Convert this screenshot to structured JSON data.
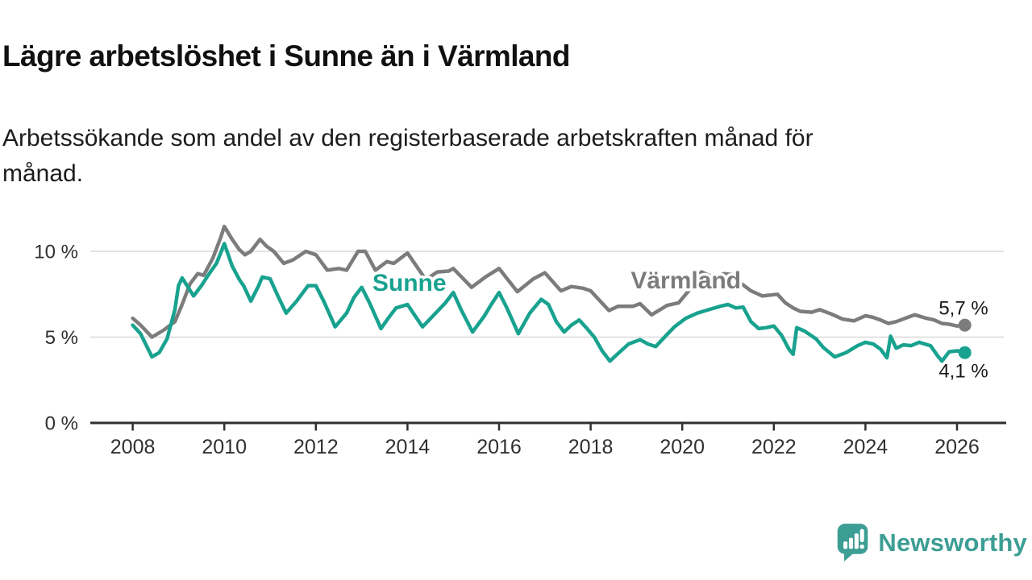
{
  "chart_data": {
    "type": "line",
    "title": "Lägre arbetslöshet i Sunne än i Värmland",
    "subtitle_lines": [
      "Arbetssökande som andel av den registerbaserade arbetskraften månad för",
      "månad."
    ],
    "unit": "%",
    "grid": "horizontal-only",
    "legend_position": "inline-labels-on-lines",
    "x_axis": {
      "min": 2007.1,
      "max": 2027.1,
      "ticks": [
        2008,
        2010,
        2012,
        2014,
        2016,
        2018,
        2020,
        2022,
        2024,
        2026
      ]
    },
    "y_axis": {
      "min": 0,
      "max": 12,
      "gridlines": [
        5,
        10
      ],
      "ticks": [
        {
          "value": 0,
          "label": "0 %"
        },
        {
          "value": 5,
          "label": "5 %"
        },
        {
          "value": 10,
          "label": "10 %"
        }
      ]
    },
    "series": [
      {
        "name": "Värmland",
        "color": "#7C7C7C",
        "end_label": "5,7 %",
        "end_value": 5.7,
        "label_at": {
          "x": 2020.08,
          "y": 7.85
        },
        "end_label_offset": {
          "dx": 29,
          "dy": -13
        },
        "points": [
          [
            2008.0,
            6.1
          ],
          [
            2008.17,
            5.7
          ],
          [
            2008.42,
            5.0
          ],
          [
            2008.67,
            5.4
          ],
          [
            2008.92,
            5.9
          ],
          [
            2009.08,
            6.9
          ],
          [
            2009.25,
            8.1
          ],
          [
            2009.42,
            8.7
          ],
          [
            2009.55,
            8.6
          ],
          [
            2009.75,
            9.6
          ],
          [
            2009.92,
            10.8
          ],
          [
            2010.0,
            11.45
          ],
          [
            2010.17,
            10.7
          ],
          [
            2010.33,
            10.1
          ],
          [
            2010.45,
            9.8
          ],
          [
            2010.58,
            10.0
          ],
          [
            2010.78,
            10.7
          ],
          [
            2010.92,
            10.3
          ],
          [
            2011.08,
            10.0
          ],
          [
            2011.3,
            9.3
          ],
          [
            2011.5,
            9.5
          ],
          [
            2011.78,
            10.0
          ],
          [
            2012.0,
            9.8
          ],
          [
            2012.25,
            8.9
          ],
          [
            2012.5,
            9.0
          ],
          [
            2012.67,
            8.9
          ],
          [
            2012.92,
            10.0
          ],
          [
            2013.08,
            10.0
          ],
          [
            2013.3,
            8.9
          ],
          [
            2013.55,
            9.4
          ],
          [
            2013.7,
            9.3
          ],
          [
            2014.0,
            9.9
          ],
          [
            2014.4,
            8.35
          ],
          [
            2014.65,
            8.8
          ],
          [
            2014.9,
            8.85
          ],
          [
            2015.0,
            9.0
          ],
          [
            2015.4,
            7.9
          ],
          [
            2015.7,
            8.5
          ],
          [
            2016.0,
            9.0
          ],
          [
            2016.4,
            7.65
          ],
          [
            2016.75,
            8.4
          ],
          [
            2017.0,
            8.75
          ],
          [
            2017.35,
            7.7
          ],
          [
            2017.58,
            7.95
          ],
          [
            2017.83,
            7.85
          ],
          [
            2018.0,
            7.7
          ],
          [
            2018.4,
            6.55
          ],
          [
            2018.6,
            6.8
          ],
          [
            2018.92,
            6.8
          ],
          [
            2019.08,
            6.95
          ],
          [
            2019.33,
            6.3
          ],
          [
            2019.67,
            6.85
          ],
          [
            2019.92,
            7.0
          ],
          [
            2020.17,
            7.8
          ],
          [
            2020.42,
            8.8
          ],
          [
            2020.58,
            8.6
          ],
          [
            2020.75,
            8.55
          ],
          [
            2020.92,
            8.7
          ],
          [
            2021.08,
            8.65
          ],
          [
            2021.25,
            8.2
          ],
          [
            2021.5,
            7.7
          ],
          [
            2021.75,
            7.4
          ],
          [
            2021.92,
            7.45
          ],
          [
            2022.08,
            7.5
          ],
          [
            2022.25,
            7.0
          ],
          [
            2022.42,
            6.7
          ],
          [
            2022.58,
            6.5
          ],
          [
            2022.83,
            6.45
          ],
          [
            2023.0,
            6.6
          ],
          [
            2023.25,
            6.35
          ],
          [
            2023.5,
            6.05
          ],
          [
            2023.75,
            5.95
          ],
          [
            2024.0,
            6.25
          ],
          [
            2024.17,
            6.15
          ],
          [
            2024.33,
            6.0
          ],
          [
            2024.5,
            5.8
          ],
          [
            2024.67,
            5.9
          ],
          [
            2024.92,
            6.15
          ],
          [
            2025.08,
            6.3
          ],
          [
            2025.33,
            6.1
          ],
          [
            2025.5,
            6.0
          ],
          [
            2025.67,
            5.8
          ],
          [
            2025.83,
            5.75
          ],
          [
            2026.0,
            5.65
          ],
          [
            2026.17,
            5.7
          ]
        ]
      },
      {
        "name": "Sunne",
        "color": "#18A28F",
        "end_label": "4,1 %",
        "end_value": 4.1,
        "label_at": {
          "x": 2014.04,
          "y": 7.7
        },
        "end_label_offset": {
          "dx": 29,
          "dy": 31
        },
        "points": [
          [
            2008.0,
            5.7
          ],
          [
            2008.17,
            5.2
          ],
          [
            2008.42,
            3.85
          ],
          [
            2008.58,
            4.1
          ],
          [
            2008.75,
            4.9
          ],
          [
            2008.92,
            6.6
          ],
          [
            2009.0,
            8.0
          ],
          [
            2009.08,
            8.45
          ],
          [
            2009.33,
            7.4
          ],
          [
            2009.5,
            8.0
          ],
          [
            2009.67,
            8.7
          ],
          [
            2009.83,
            9.3
          ],
          [
            2009.92,
            9.9
          ],
          [
            2010.0,
            10.45
          ],
          [
            2010.17,
            9.15
          ],
          [
            2010.33,
            8.35
          ],
          [
            2010.42,
            8.0
          ],
          [
            2010.58,
            7.1
          ],
          [
            2010.75,
            8.0
          ],
          [
            2010.83,
            8.5
          ],
          [
            2011.0,
            8.4
          ],
          [
            2011.17,
            7.4
          ],
          [
            2011.35,
            6.4
          ],
          [
            2011.58,
            7.1
          ],
          [
            2011.83,
            8.0
          ],
          [
            2012.0,
            8.0
          ],
          [
            2012.17,
            7.1
          ],
          [
            2012.42,
            5.6
          ],
          [
            2012.67,
            6.4
          ],
          [
            2012.83,
            7.3
          ],
          [
            2013.0,
            7.9
          ],
          [
            2013.17,
            7.0
          ],
          [
            2013.42,
            5.5
          ],
          [
            2013.58,
            6.1
          ],
          [
            2013.75,
            6.7
          ],
          [
            2014.0,
            6.9
          ],
          [
            2014.33,
            5.6
          ],
          [
            2014.58,
            6.3
          ],
          [
            2014.83,
            7.0
          ],
          [
            2015.0,
            7.6
          ],
          [
            2015.17,
            6.6
          ],
          [
            2015.42,
            5.3
          ],
          [
            2015.67,
            6.2
          ],
          [
            2015.83,
            6.9
          ],
          [
            2016.0,
            7.6
          ],
          [
            2016.17,
            6.7
          ],
          [
            2016.42,
            5.2
          ],
          [
            2016.67,
            6.4
          ],
          [
            2016.92,
            7.2
          ],
          [
            2017.08,
            6.9
          ],
          [
            2017.25,
            5.9
          ],
          [
            2017.42,
            5.3
          ],
          [
            2017.58,
            5.7
          ],
          [
            2017.75,
            6.0
          ],
          [
            2017.92,
            5.5
          ],
          [
            2018.08,
            5.0
          ],
          [
            2018.25,
            4.2
          ],
          [
            2018.42,
            3.6
          ],
          [
            2018.58,
            4.0
          ],
          [
            2018.83,
            4.6
          ],
          [
            2019.08,
            4.85
          ],
          [
            2019.25,
            4.6
          ],
          [
            2019.42,
            4.45
          ],
          [
            2019.58,
            4.9
          ],
          [
            2019.83,
            5.6
          ],
          [
            2020.08,
            6.1
          ],
          [
            2020.33,
            6.4
          ],
          [
            2020.58,
            6.6
          ],
          [
            2020.83,
            6.8
          ],
          [
            2021.0,
            6.9
          ],
          [
            2021.17,
            6.7
          ],
          [
            2021.33,
            6.75
          ],
          [
            2021.5,
            5.9
          ],
          [
            2021.67,
            5.5
          ],
          [
            2021.83,
            5.55
          ],
          [
            2022.0,
            5.65
          ],
          [
            2022.17,
            5.1
          ],
          [
            2022.33,
            4.3
          ],
          [
            2022.42,
            4.0
          ],
          [
            2022.5,
            5.55
          ],
          [
            2022.67,
            5.35
          ],
          [
            2022.92,
            4.9
          ],
          [
            2023.08,
            4.4
          ],
          [
            2023.33,
            3.85
          ],
          [
            2023.58,
            4.1
          ],
          [
            2023.83,
            4.5
          ],
          [
            2024.0,
            4.7
          ],
          [
            2024.17,
            4.6
          ],
          [
            2024.33,
            4.3
          ],
          [
            2024.47,
            3.8
          ],
          [
            2024.55,
            5.05
          ],
          [
            2024.67,
            4.35
          ],
          [
            2024.83,
            4.55
          ],
          [
            2025.0,
            4.5
          ],
          [
            2025.17,
            4.7
          ],
          [
            2025.42,
            4.5
          ],
          [
            2025.58,
            3.9
          ],
          [
            2025.67,
            3.6
          ],
          [
            2025.83,
            4.15
          ],
          [
            2026.0,
            4.2
          ],
          [
            2026.17,
            4.1
          ]
        ]
      }
    ],
    "colors": {
      "axis": "#2F2F2F",
      "gridline": "#D8D8D8",
      "tick_text": "#303030",
      "title_text": "#111111"
    }
  },
  "footer": {
    "brand": "Newsworthy",
    "brand_color": "#3C9E94",
    "logo_icon": "bar-chart-speech-bubble"
  }
}
